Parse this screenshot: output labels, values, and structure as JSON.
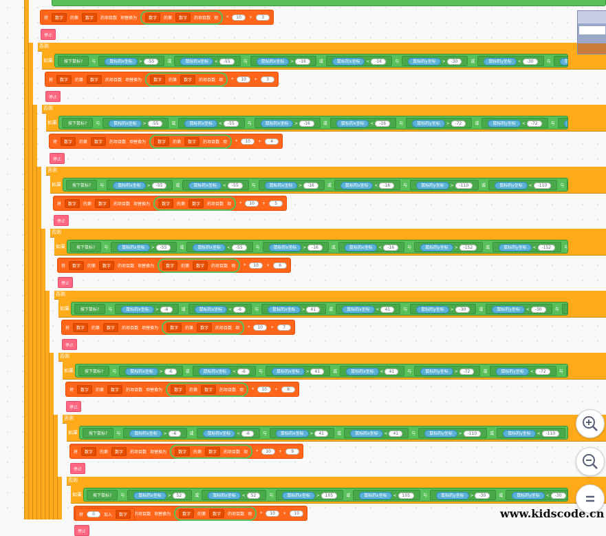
{
  "blocks": {
    "if_label": "如果",
    "else_label": "否则",
    "key_pressed": "按下鼠标?",
    "and_label": "与",
    "or_label": "或",
    "mouse_x": "鼠标的x坐标",
    "mouse_y": "鼠标的y坐标",
    "set_label": "将",
    "var_name": "数字",
    "of_label": "的第",
    "item_label": "的项目数",
    "replace_label": "项替换为",
    "item_suffix": "项",
    "break_label": "停止",
    "add_label": "加入",
    "add_value": "0"
  },
  "rows": [
    {
      "vals": [
        "-55",
        "-55",
        "-16",
        "-16",
        "-30",
        "-30",
        "4",
        "4"
      ],
      "set": [
        "10",
        "3"
      ]
    },
    {
      "vals": [
        "-55",
        "-55",
        "-16",
        "-16",
        "-72",
        "-72",
        "-40",
        "-40"
      ],
      "set": [
        "10",
        "4"
      ]
    },
    {
      "vals": [
        "-55",
        "-55",
        "-16",
        "-16",
        "-110",
        "-110",
        "-84",
        "-84"
      ],
      "set": [
        "10",
        "5"
      ]
    },
    {
      "vals": [
        "-55",
        "-55",
        "-16",
        "-16",
        "-152",
        "-152",
        "-120",
        "-120"
      ],
      "set": [
        "10",
        "6"
      ]
    },
    {
      "vals": [
        "-6",
        "-6",
        "41",
        "41",
        "-30",
        "-30",
        "4",
        "4"
      ],
      "set": [
        "10",
        "7"
      ]
    },
    {
      "vals": [
        "-6",
        "-6",
        "41",
        "41",
        "-72",
        "-72",
        "-40",
        "-40"
      ],
      "set": [
        "10",
        "8"
      ]
    },
    {
      "vals": [
        "-6",
        "-6",
        "41",
        "41",
        "-110",
        "-110",
        "-84",
        "-84"
      ],
      "set": [
        "10",
        "9"
      ]
    },
    {
      "vals": [
        "52",
        "52",
        "105",
        "105",
        "-30",
        "-30",
        "4",
        "4"
      ],
      "set": [
        "10",
        "10"
      ]
    }
  ],
  "top": {
    "set": [
      "10",
      "3"
    ]
  },
  "zoom": {
    "in": "zoom-in",
    "out": "zoom-out",
    "reset": "reset"
  },
  "watermark": "www.kidscode.cn"
}
